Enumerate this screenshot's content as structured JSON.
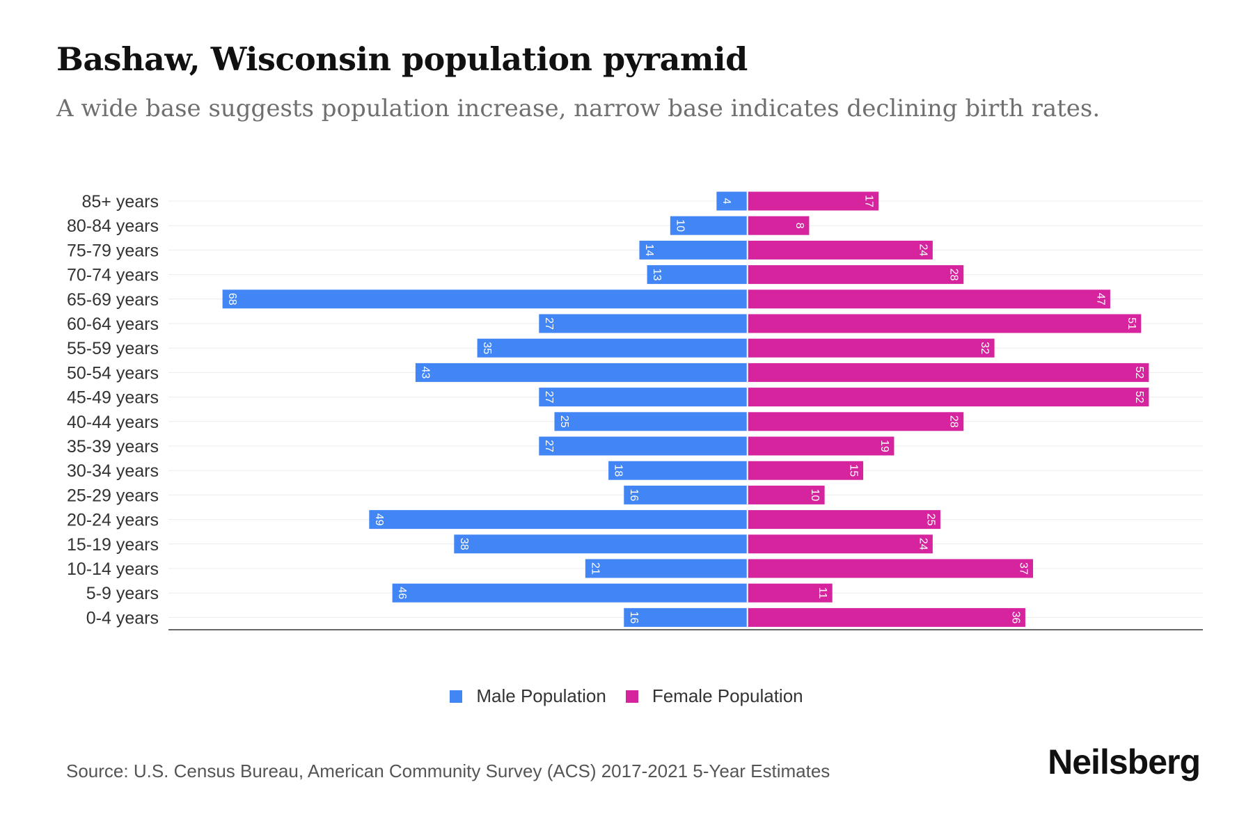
{
  "header": {
    "title": "Bashaw, Wisconsin population pyramid",
    "subtitle": "A wide base suggests population increase, narrow base indicates declining birth rates."
  },
  "footer": {
    "source": "Source: U.S. Census Bureau, American Community Survey (ACS) 2017-2021 5-Year Estimates",
    "brand": "Neilsberg"
  },
  "colors": {
    "male": "#4285f4",
    "female": "#d6249f"
  },
  "chart_data": {
    "type": "bar",
    "orientation": "horizontal-pyramid",
    "categories": [
      "85+ years",
      "80-84 years",
      "75-79 years",
      "70-74 years",
      "65-69 years",
      "60-64 years",
      "55-59 years",
      "50-54 years",
      "45-49 years",
      "40-44 years",
      "35-39 years",
      "30-34 years",
      "25-29 years",
      "20-24 years",
      "15-19 years",
      "10-14 years",
      "5-9 years",
      "0-4 years"
    ],
    "series": [
      {
        "name": "Male Population",
        "side": "left",
        "values": [
          4,
          10,
          14,
          13,
          68,
          27,
          35,
          43,
          27,
          25,
          27,
          18,
          16,
          49,
          38,
          21,
          46,
          16
        ]
      },
      {
        "name": "Female Population",
        "side": "right",
        "values": [
          17,
          8,
          24,
          28,
          47,
          51,
          32,
          52,
          52,
          28,
          19,
          15,
          10,
          25,
          24,
          37,
          11,
          36
        ]
      }
    ],
    "xlim": [
      -75,
      59
    ],
    "grid": true,
    "data_labels": true,
    "legend_position": "bottom-center"
  }
}
